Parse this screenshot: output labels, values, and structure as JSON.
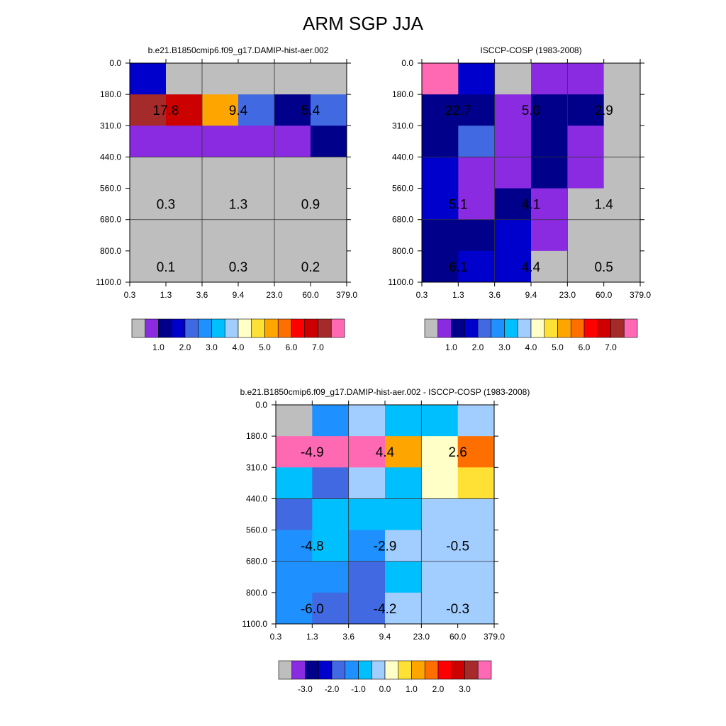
{
  "title": "ARM SGP JJA",
  "chart_data": [
    {
      "type": "heatmap",
      "title": "b.e21.B1850cmip6.f09_g17.DAMIP-hist-aer.002",
      "x_ticks": [
        "0.3",
        "1.3",
        "3.6",
        "9.4",
        "23.0",
        "60.0",
        "379.0"
      ],
      "y_ticks": [
        "0.0",
        "180.0",
        "310.0",
        "440.0",
        "560.0",
        "680.0",
        "800.0",
        "1100.0"
      ],
      "cell_colors": [
        [
          "#0000cd",
          "#bebebe",
          "#bebebe",
          "#bebebe",
          "#bebebe",
          "#bebebe"
        ],
        [
          "#a52a2a",
          "#cd0000",
          "#ffa500",
          "#4169e1",
          "#00008b",
          "#4169e1"
        ],
        [
          "#8a2be2",
          "#8a2be2",
          "#8a2be2",
          "#8a2be2",
          "#8a2be2",
          "#00008b"
        ],
        [
          "#bebebe",
          "#bebebe",
          "#bebebe",
          "#bebebe",
          "#bebebe",
          "#bebebe"
        ],
        [
          "#bebebe",
          "#bebebe",
          "#bebebe",
          "#bebebe",
          "#bebebe",
          "#bebebe"
        ],
        [
          "#bebebe",
          "#bebebe",
          "#bebebe",
          "#bebebe",
          "#bebebe",
          "#bebebe"
        ],
        [
          "#bebebe",
          "#bebebe",
          "#bebebe",
          "#bebebe",
          "#bebebe",
          "#bebebe"
        ]
      ],
      "labels": [
        {
          "col": 0,
          "row": 1,
          "text": "17.8"
        },
        {
          "col": 1,
          "row": 1,
          "text": "9.4"
        },
        {
          "col": 2,
          "row": 1,
          "text": "5.4"
        },
        {
          "col": 0,
          "row": 4,
          "text": "0.3"
        },
        {
          "col": 1,
          "row": 4,
          "text": "1.3"
        },
        {
          "col": 2,
          "row": 4,
          "text": "0.9"
        },
        {
          "col": 0,
          "row": 6,
          "text": "0.1"
        },
        {
          "col": 1,
          "row": 6,
          "text": "0.3"
        },
        {
          "col": 2,
          "row": 6,
          "text": "0.2"
        }
      ],
      "colorbar": {
        "colors": [
          "#bebebe",
          "#8a2be2",
          "#00008b",
          "#0000cd",
          "#4169e1",
          "#1e90ff",
          "#00bfff",
          "#a2cdff",
          "#ffffc8",
          "#ffe135",
          "#ffa500",
          "#ff6f00",
          "#ff0000",
          "#cd0000",
          "#a52a2a",
          "#ff69b4"
        ],
        "labels": [
          "1.0",
          "2.0",
          "3.0",
          "4.0",
          "5.0",
          "6.0",
          "7.0"
        ]
      }
    },
    {
      "type": "heatmap",
      "title": "ISCCP-COSP (1983-2008)",
      "x_ticks": [
        "0.3",
        "1.3",
        "3.6",
        "9.4",
        "23.0",
        "60.0",
        "379.0"
      ],
      "y_ticks": [
        "0.0",
        "180.0",
        "310.0",
        "440.0",
        "560.0",
        "680.0",
        "800.0",
        "1100.0"
      ],
      "cell_colors": [
        [
          "#ff69b4",
          "#0000cd",
          "#bebebe",
          "#8a2be2",
          "#8a2be2",
          "#bebebe"
        ],
        [
          "#00008b",
          "#00008b",
          "#8a2be2",
          "#00008b",
          "#00008b",
          "#bebebe"
        ],
        [
          "#00008b",
          "#4169e1",
          "#8a2be2",
          "#00008b",
          "#8a2be2",
          "#bebebe"
        ],
        [
          "#0000cd",
          "#8a2be2",
          "#8a2be2",
          "#00008b",
          "#8a2be2",
          "#bebebe"
        ],
        [
          "#0000cd",
          "#8a2be2",
          "#00008b",
          "#8a2be2",
          "#bebebe",
          "#bebebe"
        ],
        [
          "#00008b",
          "#00008b",
          "#0000cd",
          "#8a2be2",
          "#bebebe",
          "#bebebe"
        ],
        [
          "#00008b",
          "#0000cd",
          "#0000cd",
          "#bebebe",
          "#bebebe",
          "#bebebe"
        ]
      ],
      "labels": [
        {
          "col": 0,
          "row": 1,
          "text": "22.7"
        },
        {
          "col": 1,
          "row": 1,
          "text": "5.0"
        },
        {
          "col": 2,
          "row": 1,
          "text": "2.9"
        },
        {
          "col": 0,
          "row": 4,
          "text": "5.1"
        },
        {
          "col": 1,
          "row": 4,
          "text": "4.1"
        },
        {
          "col": 2,
          "row": 4,
          "text": "1.4"
        },
        {
          "col": 0,
          "row": 6,
          "text": "6.1"
        },
        {
          "col": 1,
          "row": 6,
          "text": "4.4"
        },
        {
          "col": 2,
          "row": 6,
          "text": "0.5"
        }
      ],
      "colorbar": {
        "colors": [
          "#bebebe",
          "#8a2be2",
          "#00008b",
          "#0000cd",
          "#4169e1",
          "#1e90ff",
          "#00bfff",
          "#a2cdff",
          "#ffffc8",
          "#ffe135",
          "#ffa500",
          "#ff6f00",
          "#ff0000",
          "#cd0000",
          "#a52a2a",
          "#ff69b4"
        ],
        "labels": [
          "1.0",
          "2.0",
          "3.0",
          "4.0",
          "5.0",
          "6.0",
          "7.0"
        ]
      }
    },
    {
      "type": "heatmap",
      "title": "b.e21.B1850cmip6.f09_g17.DAMIP-hist-aer.002 - ISCCP-COSP (1983-2008)",
      "x_ticks": [
        "0.3",
        "1.3",
        "3.6",
        "9.4",
        "23.0",
        "60.0",
        "379.0"
      ],
      "y_ticks": [
        "0.0",
        "180.0",
        "310.0",
        "440.0",
        "560.0",
        "680.0",
        "800.0",
        "1100.0"
      ],
      "cell_colors": [
        [
          "#bebebe",
          "#1e90ff",
          "#a2cdff",
          "#00bfff",
          "#00bfff",
          "#a2cdff"
        ],
        [
          "#ff69b4",
          "#ff69b4",
          "#ff69b4",
          "#ffa500",
          "#ffffc8",
          "#ff6f00"
        ],
        [
          "#00bfff",
          "#4169e1",
          "#a2cdff",
          "#00bfff",
          "#ffffc8",
          "#ffe135"
        ],
        [
          "#4169e1",
          "#00bfff",
          "#00bfff",
          "#00bfff",
          "#a2cdff",
          "#a2cdff"
        ],
        [
          "#1e90ff",
          "#00bfff",
          "#1e90ff",
          "#a2cdff",
          "#a2cdff",
          "#a2cdff"
        ],
        [
          "#1e90ff",
          "#1e90ff",
          "#4169e1",
          "#00bfff",
          "#a2cdff",
          "#a2cdff"
        ],
        [
          "#1e90ff",
          "#4169e1",
          "#4169e1",
          "#a2cdff",
          "#a2cdff",
          "#a2cdff"
        ]
      ],
      "labels": [
        {
          "col": 0,
          "row": 1,
          "text": "-4.9"
        },
        {
          "col": 1,
          "row": 1,
          "text": "4.4"
        },
        {
          "col": 2,
          "row": 1,
          "text": "2.6"
        },
        {
          "col": 0,
          "row": 4,
          "text": "-4.8"
        },
        {
          "col": 1,
          "row": 4,
          "text": "-2.9"
        },
        {
          "col": 2,
          "row": 4,
          "text": "-0.5"
        },
        {
          "col": 0,
          "row": 6,
          "text": "-6.0"
        },
        {
          "col": 1,
          "row": 6,
          "text": "-4.2"
        },
        {
          "col": 2,
          "row": 6,
          "text": "-0.3"
        }
      ],
      "colorbar": {
        "colors": [
          "#bebebe",
          "#8a2be2",
          "#00008b",
          "#0000cd",
          "#4169e1",
          "#1e90ff",
          "#00bfff",
          "#a2cdff",
          "#ffffc8",
          "#ffe135",
          "#ffa500",
          "#ff6f00",
          "#ff0000",
          "#cd0000",
          "#a52a2a",
          "#ff69b4"
        ],
        "labels": [
          "-3.0",
          "-2.0",
          "-1.0",
          "0.0",
          "1.0",
          "2.0",
          "3.0"
        ]
      }
    }
  ]
}
